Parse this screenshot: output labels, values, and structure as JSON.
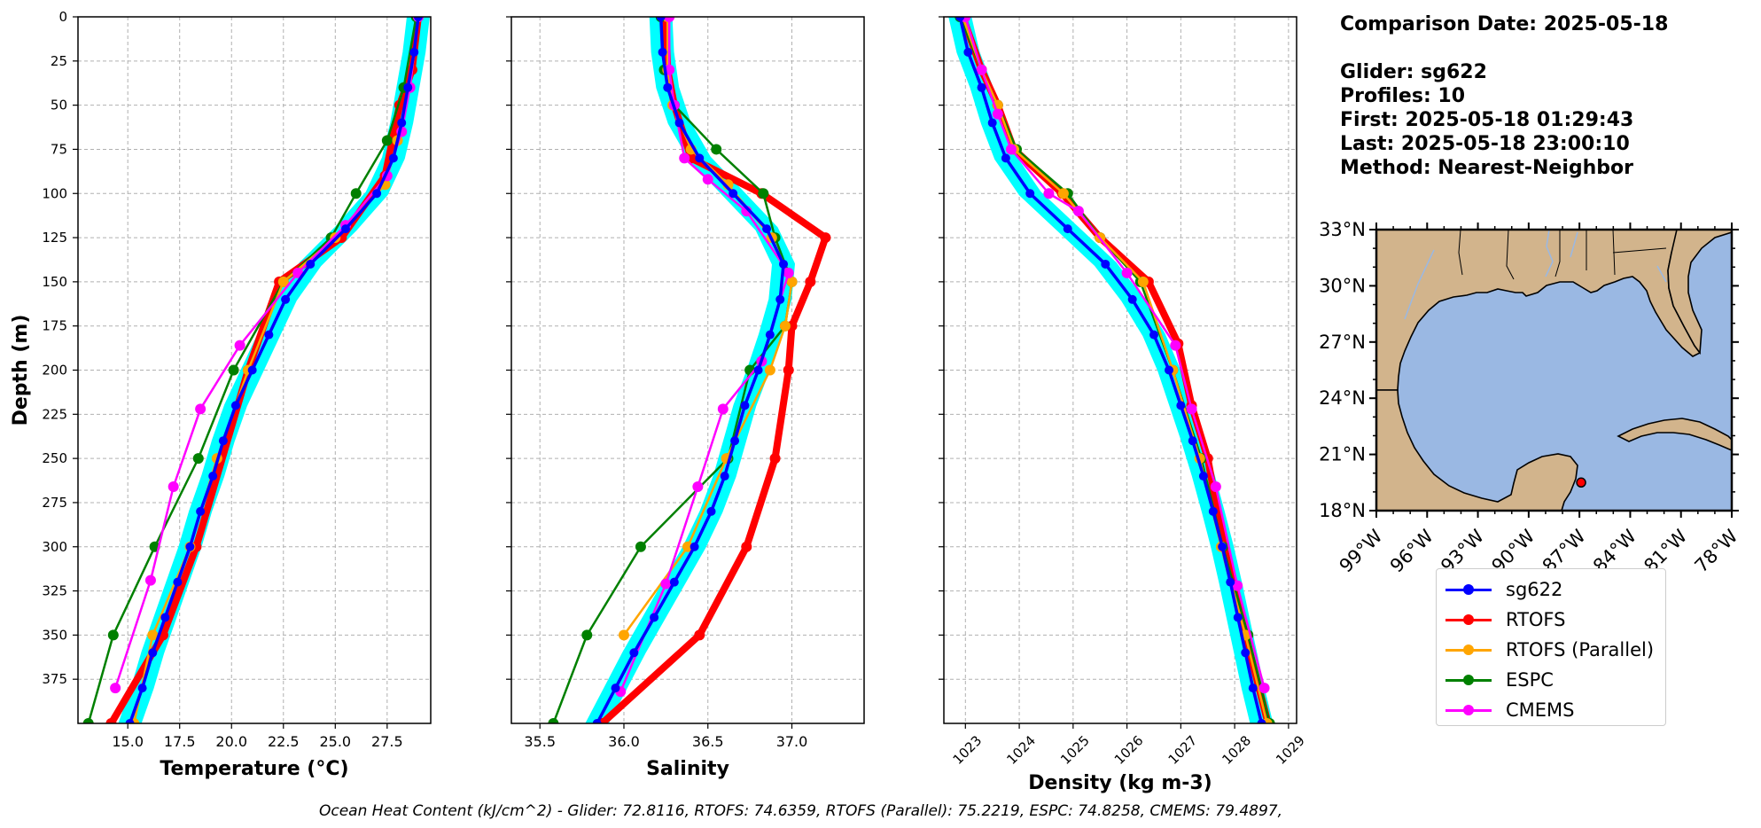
{
  "info": {
    "comparison_date": "Comparison Date: 2025-05-18",
    "glider": "Glider: sg622",
    "profiles": "Profiles: 10",
    "first": "First: 2025-05-18 01:29:43",
    "last": "Last: 2025-05-18 23:00:10",
    "method": "Method: Nearest-Neighbor"
  },
  "footer": "Ocean Heat Content (kJ/cm^2) - Glider: 72.8116,  RTOFS: 74.6359,  RTOFS (Parallel): 75.2219,  ESPC: 74.8258,  CMEMS: 79.4897,",
  "colors": {
    "sg622": "#0000ff",
    "RTOFS": "#ff0000",
    "RTOFS (Parallel)": "#ffa500",
    "ESPC": "#008000",
    "CMEMS": "#ff00ff",
    "glider_envelope": "#00ffff",
    "land": "#d2b48c",
    "ocean": "#9ab8e3"
  },
  "legend": [
    "sg622",
    "RTOFS",
    "RTOFS (Parallel)",
    "ESPC",
    "CMEMS"
  ],
  "map": {
    "lon_ticks": [
      "99°W",
      "96°W",
      "93°W",
      "90°W",
      "87°W",
      "84°W",
      "81°W",
      "78°W"
    ],
    "lat_ticks": [
      "33°N",
      "30°N",
      "27°N",
      "24°N",
      "21°N",
      "18°N"
    ],
    "lon_range": [
      -99,
      -78
    ],
    "lat_range": [
      18,
      33
    ],
    "glider_location": {
      "lon": -86.9,
      "lat": 19.5
    }
  },
  "chart_data": [
    {
      "type": "line",
      "title": "",
      "xlabel": "Temperature (°C)",
      "ylabel": "Depth (m)",
      "xlim": [
        12.6,
        29.6
      ],
      "ylim": [
        400,
        0
      ],
      "xticks": [
        15.0,
        17.5,
        20.0,
        22.5,
        25.0,
        27.5
      ],
      "xtick_labels": [
        "15.0",
        "17.5",
        "20.0",
        "22.5",
        "25.0",
        "27.5"
      ],
      "yticks": [
        0,
        25,
        50,
        75,
        100,
        125,
        150,
        175,
        200,
        225,
        250,
        275,
        300,
        325,
        350,
        375
      ],
      "grid": true,
      "series": [
        {
          "name": "sg622",
          "x": [
            29.0,
            28.8,
            28.5,
            28.2,
            27.8,
            27.0,
            25.5,
            23.8,
            22.6,
            21.8,
            21.0,
            20.2,
            19.6,
            19.1,
            18.5,
            18.0,
            17.4,
            16.8,
            16.2,
            15.7,
            15.1,
            14.6,
            14.1
          ],
          "y": [
            0,
            20,
            40,
            60,
            80,
            100,
            120,
            140,
            160,
            180,
            200,
            220,
            240,
            260,
            280,
            300,
            320,
            340,
            360,
            380,
            400,
            410,
            420
          ]
        },
        {
          "name": "RTOFS",
          "x": [
            29.0,
            28.7,
            28.1,
            27.4,
            25.3,
            22.3,
            20.8,
            18.3,
            16.7,
            14.2
          ],
          "y": [
            0,
            30,
            50,
            90,
            125,
            150,
            200,
            300,
            350,
            400
          ]
        },
        {
          "name": "RTOFS (Parallel)",
          "x": [
            29.0,
            28.6,
            28.0,
            27.4,
            25.0,
            22.5,
            20.8,
            19.3,
            18.0,
            16.2,
            15.3
          ],
          "y": [
            0,
            40,
            70,
            95,
            125,
            150,
            200,
            250,
            300,
            350,
            400
          ]
        },
        {
          "name": "ESPC",
          "x": [
            28.9,
            28.3,
            27.5,
            26.0,
            24.8,
            22.5,
            20.1,
            18.4,
            16.3,
            14.3,
            13.1
          ],
          "y": [
            0,
            40,
            70,
            100,
            125,
            150,
            200,
            250,
            300,
            350,
            400
          ]
        },
        {
          "name": "CMEMS",
          "x": [
            29.0,
            28.6,
            28.2,
            27.5,
            25.5,
            23.2,
            20.4,
            18.5,
            17.2,
            16.1,
            14.4
          ],
          "y": [
            0,
            40,
            65,
            90,
            118,
            145,
            186,
            222,
            266,
            319,
            380
          ]
        }
      ]
    },
    {
      "type": "line",
      "title": "",
      "xlabel": "Salinity",
      "ylabel": "",
      "xlim": [
        35.33,
        37.43
      ],
      "ylim": [
        400,
        0
      ],
      "xticks": [
        35.5,
        36.0,
        36.5,
        37.0
      ],
      "xtick_labels": [
        "35.5",
        "36.0",
        "36.5",
        "37.0"
      ],
      "yticks": [
        0,
        25,
        50,
        75,
        100,
        125,
        150,
        175,
        200,
        225,
        250,
        275,
        300,
        325,
        350,
        375
      ],
      "grid": true,
      "series": [
        {
          "name": "sg622",
          "x": [
            36.22,
            36.23,
            36.26,
            36.33,
            36.45,
            36.65,
            36.85,
            36.95,
            36.93,
            36.87,
            36.8,
            36.72,
            36.66,
            36.6,
            36.52,
            36.42,
            36.3,
            36.18,
            36.06,
            35.95,
            35.84,
            35.78,
            35.73
          ],
          "y": [
            0,
            20,
            40,
            60,
            80,
            100,
            120,
            140,
            160,
            180,
            200,
            220,
            240,
            260,
            280,
            300,
            320,
            340,
            360,
            380,
            400,
            410,
            420
          ]
        },
        {
          "name": "RTOFS",
          "x": [
            36.25,
            36.26,
            36.3,
            36.4,
            36.82,
            37.2,
            37.11,
            37.0,
            36.98,
            36.9,
            36.73,
            36.45,
            35.87
          ],
          "y": [
            0,
            30,
            50,
            80,
            100,
            125,
            150,
            175,
            200,
            250,
            300,
            350,
            400
          ]
        },
        {
          "name": "RTOFS (Parallel)",
          "x": [
            36.26,
            36.26,
            36.29,
            36.4,
            36.62,
            36.88,
            37.0,
            36.96,
            36.87,
            36.61,
            36.38,
            36.0
          ],
          "y": [
            0,
            30,
            50,
            75,
            95,
            125,
            150,
            175,
            200,
            250,
            300,
            350
          ]
        },
        {
          "name": "ESPC",
          "x": [
            36.22,
            36.24,
            36.3,
            36.55,
            36.83,
            36.9,
            37.0,
            36.96,
            36.75,
            36.62,
            36.1,
            35.78,
            35.58
          ],
          "y": [
            0,
            30,
            50,
            75,
            100,
            125,
            150,
            175,
            200,
            250,
            300,
            350,
            400
          ]
        },
        {
          "name": "CMEMS",
          "x": [
            36.27,
            36.27,
            36.3,
            36.36,
            36.5,
            36.73,
            36.98,
            36.82,
            36.59,
            36.44,
            36.25,
            35.98
          ],
          "y": [
            0,
            30,
            50,
            80,
            92,
            110,
            145,
            195,
            222,
            266,
            321,
            382
          ]
        }
      ]
    },
    {
      "type": "line",
      "title": "",
      "xlabel": "Density (kg m-3)",
      "ylabel": "",
      "xlim": [
        1022.6,
        1029.15
      ],
      "ylim": [
        400,
        0
      ],
      "xticks": [
        1023,
        1024,
        1025,
        1026,
        1027,
        1028,
        1029
      ],
      "xtick_labels": [
        "1023",
        "1024",
        "1025",
        "1026",
        "1027",
        "1028",
        "1029"
      ],
      "yticks": [
        0,
        25,
        50,
        75,
        100,
        125,
        150,
        175,
        200,
        225,
        250,
        275,
        300,
        325,
        350,
        375
      ],
      "grid": true,
      "series": [
        {
          "name": "sg622",
          "x": [
            1022.9,
            1023.05,
            1023.3,
            1023.5,
            1023.75,
            1024.2,
            1024.9,
            1025.6,
            1026.1,
            1026.5,
            1026.78,
            1027.0,
            1027.22,
            1027.42,
            1027.6,
            1027.77,
            1027.92,
            1028.06,
            1028.2,
            1028.34,
            1028.5,
            1028.58,
            1028.63
          ],
          "y": [
            0,
            20,
            40,
            60,
            80,
            100,
            120,
            140,
            160,
            180,
            200,
            220,
            240,
            260,
            280,
            300,
            320,
            340,
            360,
            380,
            400,
            410,
            420
          ]
        },
        {
          "name": "RTOFS",
          "x": [
            1022.95,
            1023.3,
            1023.6,
            1023.9,
            1024.8,
            1025.5,
            1026.4,
            1026.95,
            1027.2,
            1027.5,
            1027.8,
            1028.2,
            1028.62
          ],
          "y": [
            0,
            30,
            50,
            75,
            100,
            125,
            150,
            185,
            220,
            250,
            300,
            350,
            400
          ]
        },
        {
          "name": "RTOFS (Parallel)",
          "x": [
            1022.95,
            1023.3,
            1023.6,
            1023.9,
            1024.82,
            1025.5,
            1026.3,
            1026.85,
            1027.35,
            1027.75,
            1028.2,
            1028.6
          ],
          "y": [
            0,
            30,
            50,
            75,
            100,
            125,
            150,
            200,
            250,
            300,
            350,
            400
          ]
        },
        {
          "name": "ESPC",
          "x": [
            1022.9,
            1023.3,
            1023.6,
            1023.95,
            1024.9,
            1025.5,
            1026.25,
            1026.85,
            1027.38,
            1027.78,
            1028.25,
            1028.65
          ],
          "y": [
            0,
            30,
            50,
            75,
            100,
            125,
            150,
            200,
            250,
            300,
            350,
            400
          ]
        },
        {
          "name": "CMEMS",
          "x": [
            1023.0,
            1023.3,
            1023.6,
            1023.85,
            1024.55,
            1025.1,
            1026.0,
            1026.9,
            1027.2,
            1027.65,
            1028.05,
            1028.55
          ],
          "y": [
            0,
            30,
            55,
            75,
            100,
            110,
            145,
            186,
            222,
            266,
            322,
            380
          ]
        }
      ]
    }
  ]
}
